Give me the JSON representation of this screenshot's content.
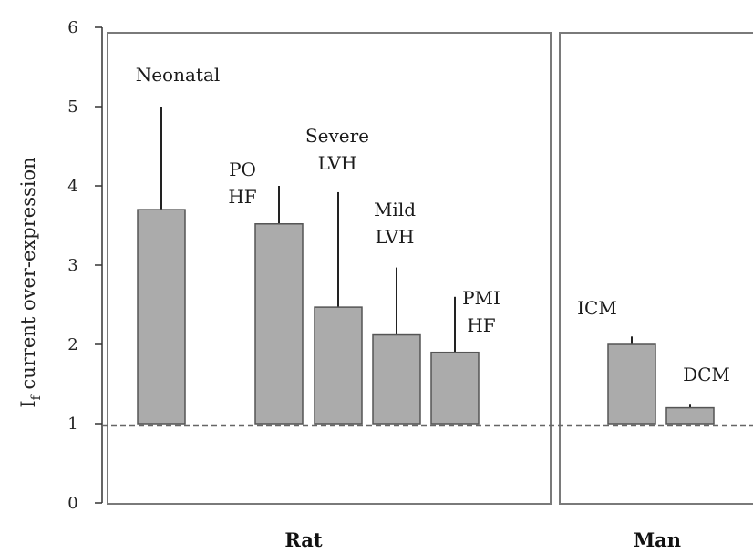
{
  "chart_data": {
    "type": "bar",
    "ylabel": {
      "main": "I",
      "subscript": "f",
      "rest": " current over-expression"
    },
    "ylim": [
      0,
      6
    ],
    "yticks": [
      "0",
      "1",
      "2",
      "3",
      "4",
      "5",
      "6"
    ],
    "reference_line": 1,
    "groups": [
      {
        "name": "Rat",
        "bars": [
          {
            "label": [
              "Neonatal"
            ],
            "value": 3.7,
            "error_top": 5.0
          },
          {
            "label": [
              "PO",
              "HF"
            ],
            "value": 3.52,
            "error_top": 4.0
          },
          {
            "label": [
              "Severe",
              "LVH"
            ],
            "value": 2.47,
            "error_top": 3.92
          },
          {
            "label": [
              "Mild",
              "LVH"
            ],
            "value": 2.12,
            "error_top": 2.97
          },
          {
            "label": [
              "PMI",
              "HF"
            ],
            "value": 1.9,
            "error_top": 2.6
          }
        ]
      },
      {
        "name": "Man",
        "bars": [
          {
            "label": [
              "ICM"
            ],
            "value": 2.0,
            "error_top": 2.1
          },
          {
            "label": [
              "DCM"
            ],
            "value": 1.2,
            "error_top": 1.25
          }
        ]
      }
    ],
    "colors": {
      "bar": "#ababab",
      "bar_edge": "#555555",
      "panel_edge": "#7a7a7a",
      "reference": "#666666"
    }
  }
}
